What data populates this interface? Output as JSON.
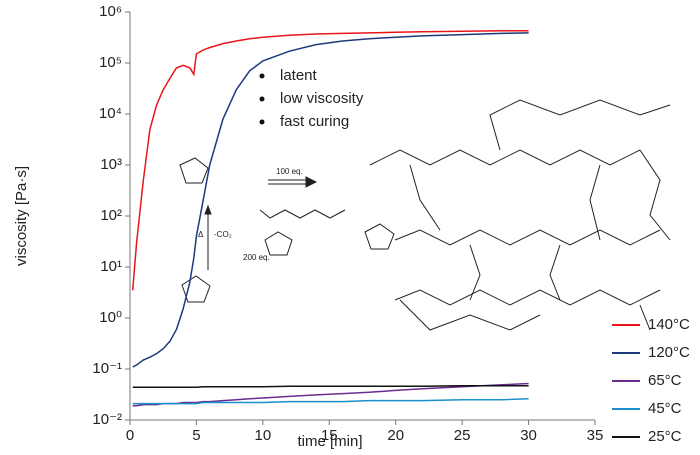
{
  "chart_data": {
    "type": "line",
    "x_label": "time [min]",
    "y_label": "viscosity [Pa·s]",
    "log_y": true,
    "x": [
      0.2,
      0.5,
      1,
      1.5,
      2,
      2.5,
      3,
      3.5,
      4,
      4.5,
      4.8,
      5,
      5.5,
      6,
      7,
      8,
      9,
      10,
      12,
      14,
      16,
      18,
      20,
      22,
      25,
      28,
      30
    ],
    "series": [
      {
        "name": "140°C",
        "color": "#e8151b",
        "values": [
          3.5,
          30,
          500,
          5000,
          15000,
          30000,
          50000,
          80000,
          90000,
          80000,
          60000,
          150000,
          180000,
          200000,
          240000,
          270000,
          300000,
          320000,
          350000,
          370000,
          380000,
          390000,
          400000,
          410000,
          420000,
          430000,
          430000
        ]
      },
      {
        "name": "120°C",
        "color": "#1c3a7a",
        "values": [
          0.11,
          0.12,
          0.15,
          0.17,
          0.2,
          0.25,
          0.35,
          0.6,
          1.5,
          5,
          15,
          40,
          200,
          1000,
          8000,
          30000,
          70000,
          110000,
          170000,
          230000,
          270000,
          300000,
          320000,
          340000,
          360000,
          380000,
          390000
        ]
      },
      {
        "name": "65°C",
        "color": "#6a2c91",
        "values": [
          0.019,
          0.019,
          0.02,
          0.02,
          0.02,
          0.021,
          0.021,
          0.021,
          0.022,
          0.022,
          0.022,
          0.022,
          0.023,
          0.023,
          0.024,
          0.025,
          0.026,
          0.027,
          0.029,
          0.031,
          0.033,
          0.035,
          0.038,
          0.041,
          0.045,
          0.049,
          0.052
        ]
      },
      {
        "name": "45°C",
        "color": "#1b8fc9",
        "values": [
          0.021,
          0.021,
          0.021,
          0.021,
          0.021,
          0.021,
          0.021,
          0.021,
          0.021,
          0.021,
          0.021,
          0.021,
          0.022,
          0.022,
          0.022,
          0.022,
          0.022,
          0.022,
          0.023,
          0.023,
          0.023,
          0.024,
          0.024,
          0.024,
          0.025,
          0.025,
          0.026
        ]
      },
      {
        "name": "25°C",
        "color": "#111111",
        "values": [
          0.044,
          0.044,
          0.044,
          0.044,
          0.044,
          0.044,
          0.044,
          0.044,
          0.044,
          0.044,
          0.044,
          0.044,
          0.045,
          0.045,
          0.045,
          0.045,
          0.045,
          0.045,
          0.046,
          0.046,
          0.046,
          0.046,
          0.046,
          0.046,
          0.047,
          0.047,
          0.047
        ]
      }
    ],
    "xlim": [
      0,
      35
    ],
    "xticks": [
      0,
      5,
      10,
      15,
      20,
      25,
      30,
      35
    ],
    "ylim": [
      0.01,
      1000000
    ],
    "yticks": [
      {
        "value": 0.01,
        "label": "10⁻²"
      },
      {
        "value": 0.1,
        "label": "10⁻¹"
      },
      {
        "value": 1,
        "label": "10⁰"
      },
      {
        "value": 10,
        "label": "10¹"
      },
      {
        "value": 100,
        "label": "10²"
      },
      {
        "value": 1000,
        "label": "10³"
      },
      {
        "value": 10000,
        "label": "10⁴"
      },
      {
        "value": 100000,
        "label": "10⁵"
      },
      {
        "value": 1000000,
        "label": "10⁶"
      }
    ],
    "legend_position": "lower right",
    "annotations": [
      "latent",
      "low viscosity",
      "fast curing"
    ],
    "scheme_labels": [
      "100 eq.",
      "200 eq.",
      "Δ",
      "-CO₂"
    ]
  }
}
